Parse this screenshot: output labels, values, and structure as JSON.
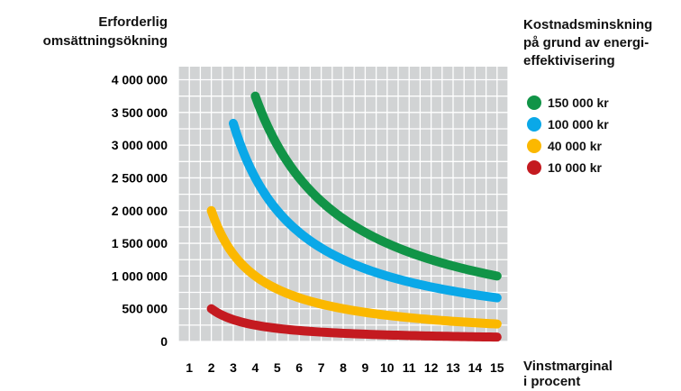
{
  "chart_data": {
    "type": "line",
    "ylabel": [
      "Erforderlig",
      "omsättningsökning"
    ],
    "xlabel": [
      "Vinstmarginal",
      "i procent"
    ],
    "legend_title": [
      "Kostnadsminskning",
      "på grund av energi-",
      "effektivisering"
    ],
    "xlim": [
      1,
      15
    ],
    "ylim": [
      0,
      4000000
    ],
    "x_ticks": [
      "1",
      "2",
      "3",
      "4",
      "5",
      "6",
      "7",
      "8",
      "9",
      "10",
      "11",
      "12",
      "13",
      "14",
      "15"
    ],
    "y_ticks": [
      {
        "value": 0,
        "label": "0"
      },
      {
        "value": 500000,
        "label": "500 000"
      },
      {
        "value": 1000000,
        "label": "1 000 000"
      },
      {
        "value": 1500000,
        "label": "1 500 000"
      },
      {
        "value": 2000000,
        "label": "2 000 000"
      },
      {
        "value": 2500000,
        "label": "2 500 000"
      },
      {
        "value": 3000000,
        "label": "3 000 000"
      },
      {
        "value": 3500000,
        "label": "3 500 000"
      },
      {
        "value": 4000000,
        "label": "4 000 000"
      }
    ],
    "grid": true,
    "legend_position": "right",
    "series": [
      {
        "name": "150 000 kr",
        "color": "#119447",
        "x_start": 4,
        "x_end": 15,
        "points": [
          [
            4,
            3750000
          ],
          [
            15,
            1000000
          ]
        ]
      },
      {
        "name": "100 000 kr",
        "color": "#0aa8e8",
        "x_start": 3,
        "x_end": 15,
        "points": [
          [
            3,
            3333333
          ],
          [
            15,
            666667
          ]
        ]
      },
      {
        "name": "40 000 kr",
        "color": "#fbb800",
        "x_start": 2,
        "x_end": 15,
        "points": [
          [
            2,
            2000000
          ],
          [
            15,
            266667
          ]
        ]
      },
      {
        "name": "10 000 kr",
        "color": "#c41a20",
        "x_start": 2,
        "x_end": 15,
        "points": [
          [
            2,
            500000
          ],
          [
            15,
            66667
          ]
        ]
      }
    ]
  }
}
